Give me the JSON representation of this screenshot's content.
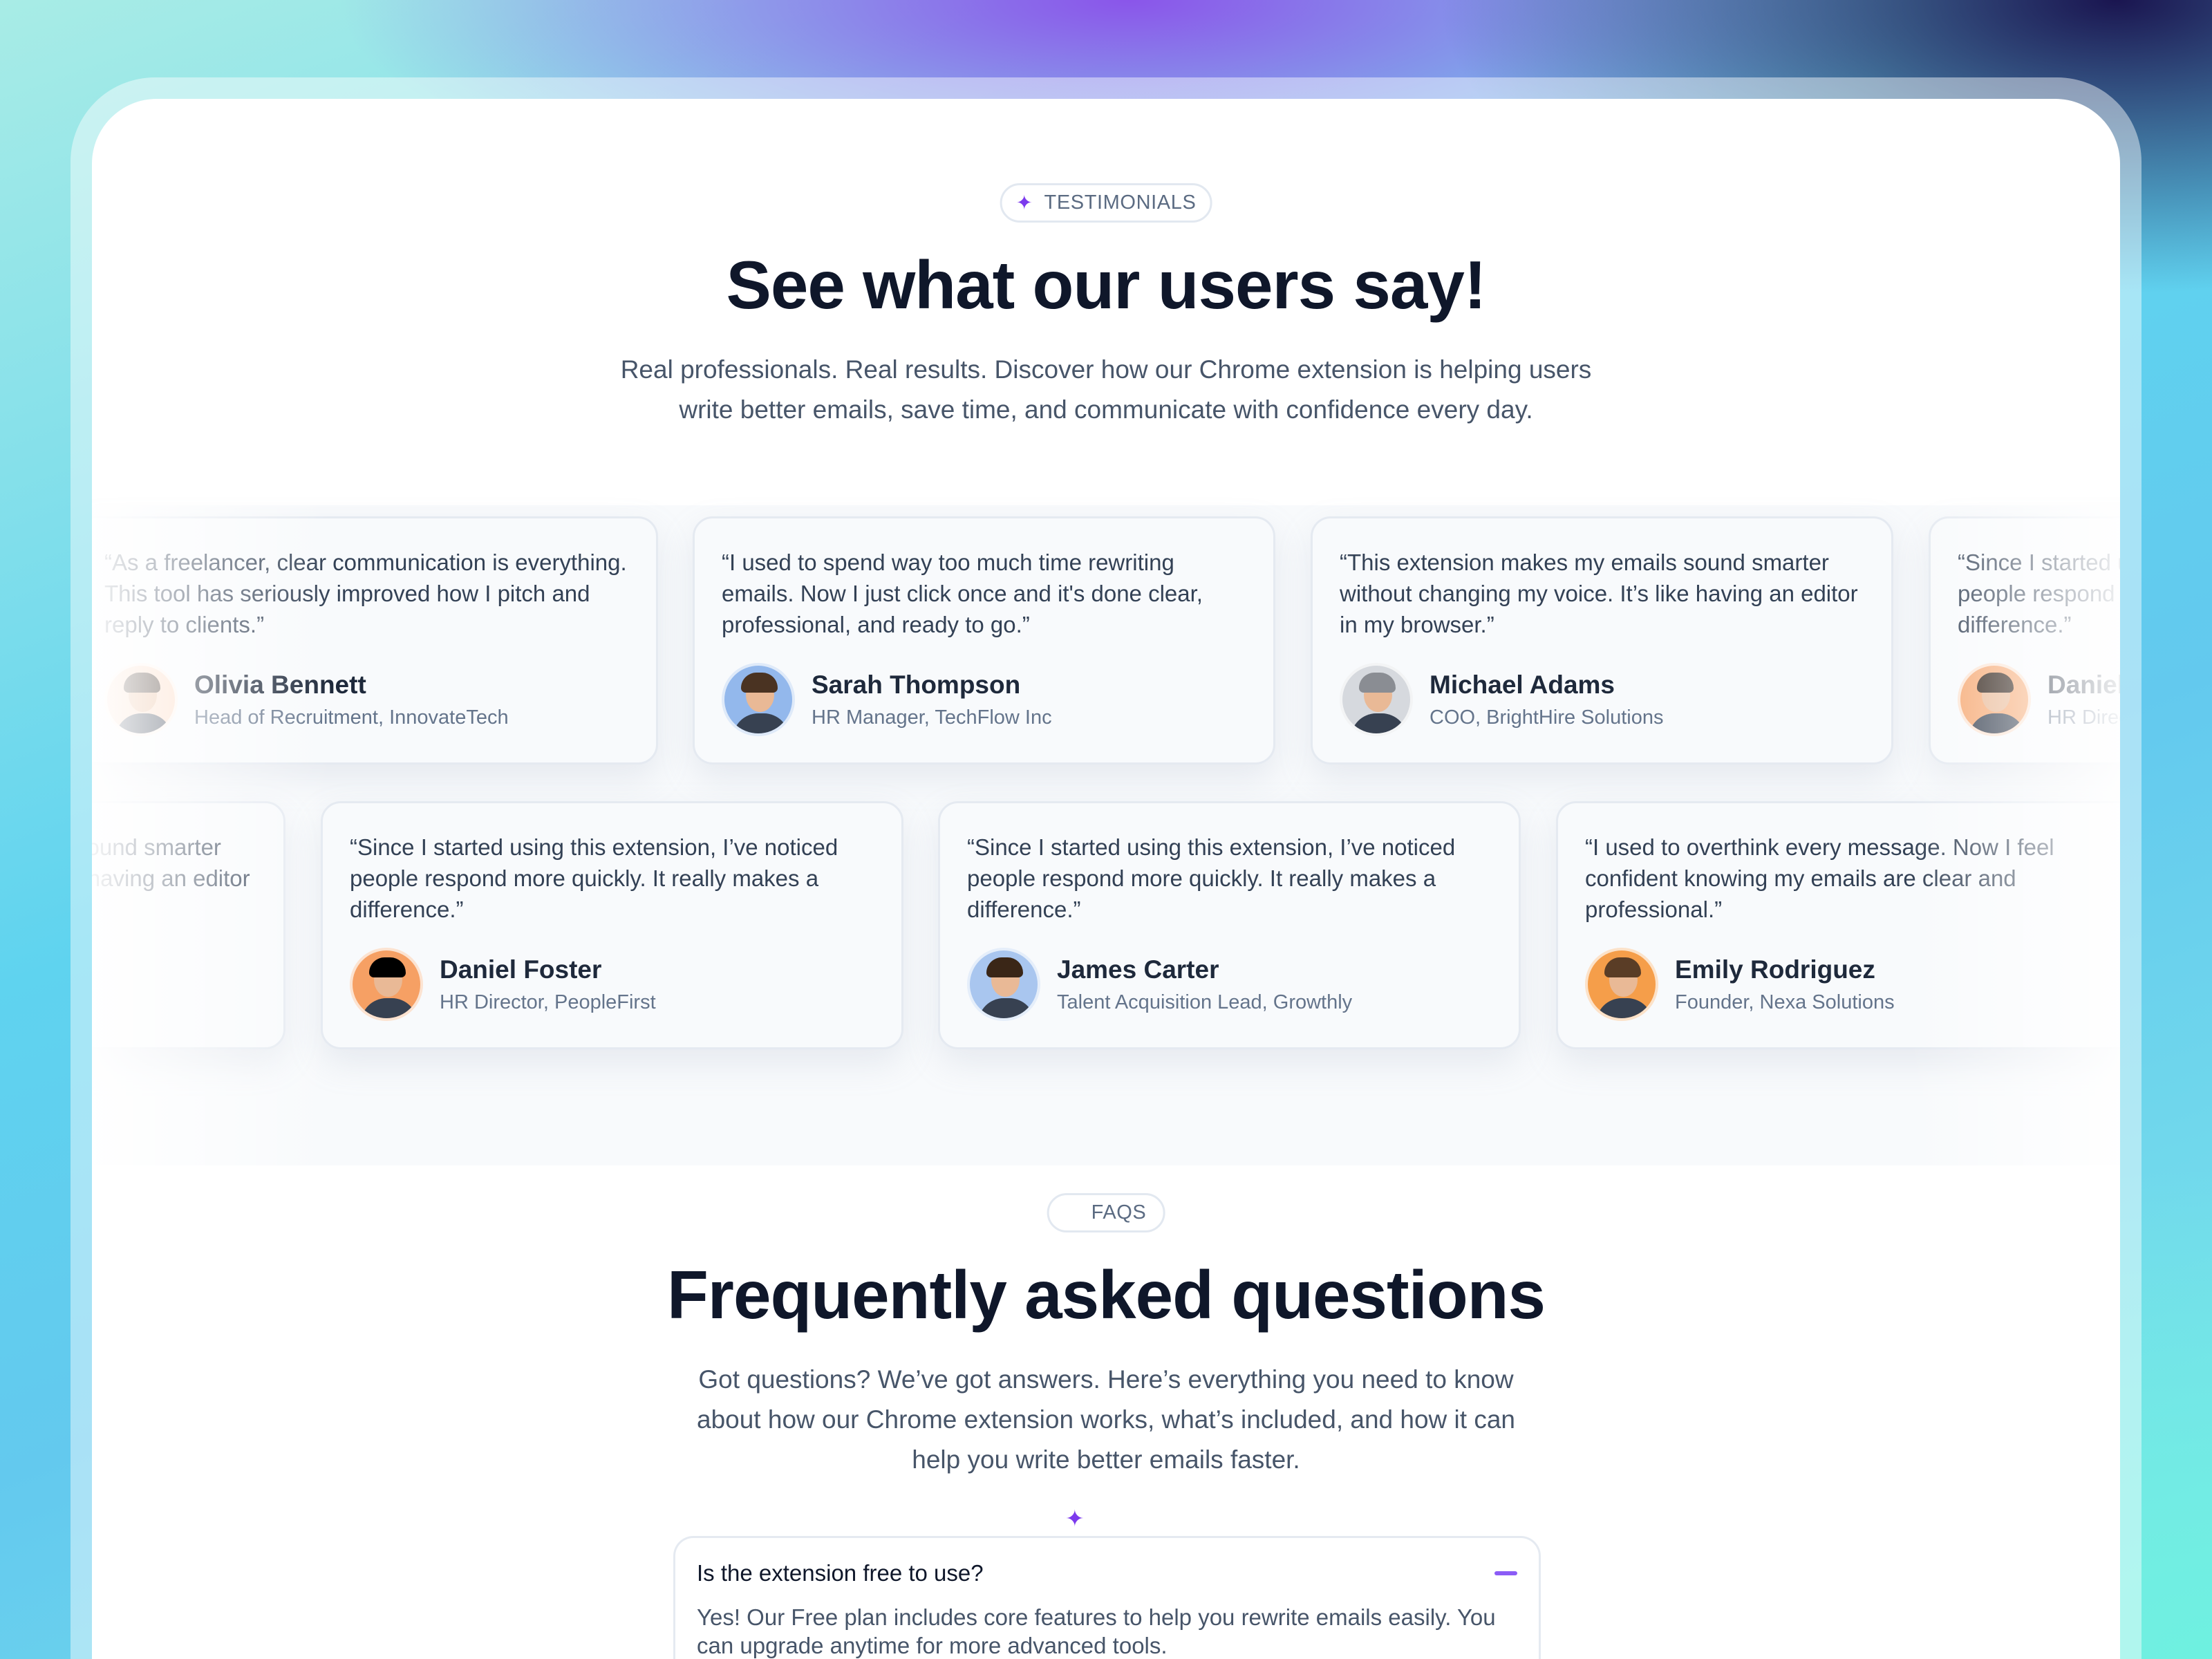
{
  "testimonials": {
    "badge": "TESTIMONIALS",
    "title": "See what our users say!",
    "subtitle_line1": "Real professionals. Real results. Discover how our Chrome extension is helping users",
    "subtitle_line2": "write better emails, save time, and communicate with confidence every day.",
    "row1": [
      {
        "quote": "“As a freelancer, clear communication is everything. This tool has seriously improved how I pitch and reply to clients.”",
        "name": "Olivia Bennett",
        "role": "Head of Recruitment, InnovateTech",
        "avatar_bg": "#fcd9c2"
      },
      {
        "quote": "“I used to spend way too much time rewriting emails. Now I just click once and it's done  clear, professional, and ready to go.”",
        "name": "Sarah Thompson",
        "role": "HR Manager, TechFlow Inc",
        "avatar_bg": "#93b8ec"
      },
      {
        "quote": "“This extension makes my emails sound smarter without changing my voice. It’s like having an editor in my browser.”",
        "name": "Michael Adams",
        "role": "COO, BrightHire Solutions",
        "avatar_bg": "#d6d9de"
      },
      {
        "quote": "“Since I started using this extension, I’ve noticed people respond more quickly. It really makes a difference.”",
        "name": "Daniel Foster",
        "role": "HR Director, PeopleFirst",
        "avatar_bg": "#f6a872"
      }
    ],
    "row2": [
      {
        "quote": "“This extension makes my emails sound smarter without changing my voice. It’s like having an editor in my browser.”",
        "name": "",
        "role": "",
        "avatar_bg": ""
      },
      {
        "quote": "“Since I started using this extension, I’ve noticed people respond more quickly. It really makes a difference.”",
        "name": "Daniel Foster",
        "role": "HR Director, PeopleFirst",
        "avatar_bg": "#f6a064"
      },
      {
        "quote": "“Since I started using this extension, I’ve noticed people respond more quickly. It really makes a difference.”",
        "name": "James Carter",
        "role": "Talent Acquisition Lead, Growthly",
        "avatar_bg": "#a9c6ef"
      },
      {
        "quote": "“I used to overthink every message. Now I feel confident knowing my emails are clear and professional.”",
        "name": "Emily Rodriguez",
        "role": "Founder, Nexa Solutions",
        "avatar_bg": "#f59e4a"
      }
    ]
  },
  "faq": {
    "badge": "FAQS",
    "title": "Frequently asked questions",
    "subtitle_line1": "Got questions? We’ve got answers. Here’s everything you need to know",
    "subtitle_line2": "about how our Chrome extension works, what’s included, and how it can",
    "subtitle_line3": "help you write better emails faster.",
    "items": [
      {
        "question": "Is the extension free to use?",
        "answer": "Yes! Our Free plan includes core features to help you rewrite emails easily. You can upgrade anytime for more advanced tools.",
        "expanded": true
      }
    ]
  },
  "colors": {
    "accent": "#7c3aed",
    "heading": "#0f172a"
  },
  "icons": {
    "badge": "sparkle-icon",
    "collapse": "minus-icon"
  }
}
